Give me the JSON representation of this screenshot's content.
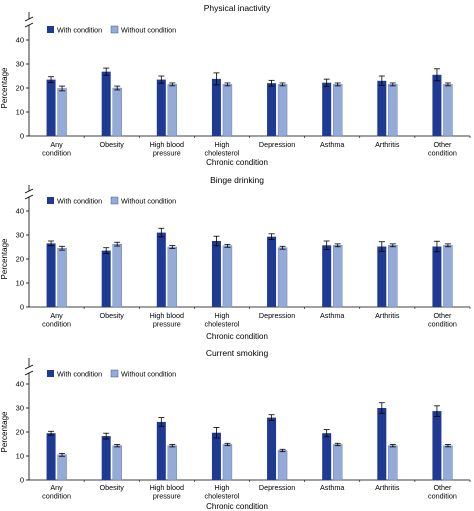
{
  "chart_data": [
    {
      "type": "bar",
      "title": "Physical inactivity",
      "xlabel": "Chronic condition",
      "ylabel": "Percentage",
      "ylim": [
        0,
        40
      ],
      "axis_break": true,
      "yticks": [
        "0",
        "10",
        "20",
        "30",
        "40"
      ],
      "categories": [
        [
          "Any",
          "condition"
        ],
        [
          "Obesity"
        ],
        [
          "High blood",
          "pressure"
        ],
        [
          "High",
          "cholesterol"
        ],
        [
          "Depression"
        ],
        [
          "Asthma"
        ],
        [
          "Arthritis"
        ],
        [
          "Other",
          "condition"
        ]
      ],
      "legend_position": "top-left",
      "series": [
        {
          "name": "With condition",
          "color": "#1f3a93",
          "values": [
            23.5,
            26.8,
            23.5,
            23.8,
            22.0,
            22.2,
            23.0,
            25.5
          ],
          "error": [
            1.2,
            1.5,
            1.5,
            2.5,
            1.2,
            1.5,
            2.0,
            2.5
          ]
        },
        {
          "name": "Without condition",
          "color": "#94abd8",
          "values": [
            19.8,
            20.0,
            21.5,
            21.5,
            21.5,
            21.5,
            21.5,
            21.5
          ],
          "error": [
            1.0,
            0.8,
            0.6,
            0.6,
            0.6,
            0.6,
            0.6,
            0.6
          ]
        }
      ]
    },
    {
      "type": "bar",
      "title": "Binge drinking",
      "xlabel": "Chronic condition",
      "ylabel": "Percentage",
      "ylim": [
        0,
        40
      ],
      "axis_break": true,
      "yticks": [
        "0",
        "10",
        "20",
        "30",
        "40"
      ],
      "categories": [
        [
          "Any",
          "condition"
        ],
        [
          "Obesity"
        ],
        [
          "High blood",
          "pressure"
        ],
        [
          "High",
          "cholesterol"
        ],
        [
          "Depression"
        ],
        [
          "Asthma"
        ],
        [
          "Arthritis"
        ],
        [
          "Other",
          "condition"
        ]
      ],
      "legend_position": "top-left",
      "series": [
        {
          "name": "With condition",
          "color": "#1f3a93",
          "values": [
            26.5,
            23.5,
            31.0,
            27.5,
            29.3,
            25.7,
            25.2,
            25.2
          ],
          "error": [
            1.0,
            1.2,
            1.8,
            2.0,
            1.2,
            1.8,
            2.0,
            2.2
          ]
        },
        {
          "name": "Without condition",
          "color": "#94abd8",
          "values": [
            24.5,
            26.2,
            25.0,
            25.5,
            24.7,
            25.7,
            25.7,
            25.7
          ],
          "error": [
            0.8,
            0.8,
            0.6,
            0.6,
            0.6,
            0.6,
            0.6,
            0.6
          ]
        }
      ]
    },
    {
      "type": "bar",
      "title": "Current smoking",
      "xlabel": "Chronic condition",
      "ylabel": "Percentage",
      "ylim": [
        0,
        40
      ],
      "axis_break": true,
      "yticks": [
        "0",
        "10",
        "20",
        "30",
        "40"
      ],
      "categories": [
        [
          "Any",
          "condition"
        ],
        [
          "Obesity"
        ],
        [
          "High blood",
          "pressure"
        ],
        [
          "High",
          "cholesterol"
        ],
        [
          "Depression"
        ],
        [
          "Asthma"
        ],
        [
          "Arthritis"
        ],
        [
          "Other",
          "condition"
        ]
      ],
      "legend_position": "top-left",
      "series": [
        {
          "name": "With condition",
          "color": "#1f3a93",
          "values": [
            19.5,
            18.3,
            24.2,
            19.7,
            26.0,
            19.5,
            30.0,
            28.7
          ],
          "error": [
            0.8,
            1.2,
            1.8,
            2.2,
            1.2,
            1.5,
            2.2,
            2.2
          ]
        },
        {
          "name": "Without condition",
          "color": "#94abd8",
          "values": [
            10.5,
            14.3,
            14.3,
            14.8,
            12.3,
            14.8,
            14.3,
            14.3
          ],
          "error": [
            0.6,
            0.5,
            0.5,
            0.5,
            0.5,
            0.5,
            0.5,
            0.5
          ]
        }
      ]
    }
  ]
}
